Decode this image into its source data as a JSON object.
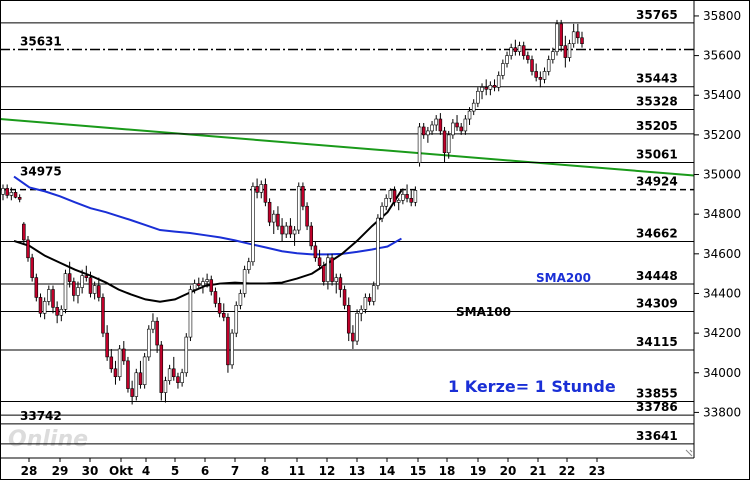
{
  "chart_data": {
    "type": "candlestick",
    "title": "",
    "xlabel": "",
    "ylabel": "",
    "ylim": [
      33570,
      35830
    ],
    "y_ticks": [
      33800,
      34000,
      34200,
      34400,
      34600,
      34800,
      35000,
      35200,
      35400,
      35600,
      35800
    ],
    "y_tick_labels": [
      "33800",
      "34000",
      "34200",
      "34400",
      "34600",
      "34800",
      "35000",
      "35200",
      "35400",
      "35600",
      "35800"
    ],
    "x_tick_labels": [
      "28",
      "29",
      "30",
      "Okt",
      "4",
      "5",
      "6",
      "7",
      "8",
      "11",
      "12",
      "13",
      "14",
      "15",
      "18",
      "19",
      "20",
      "21",
      "22",
      "23"
    ],
    "grid": "horizontal lines at key levels",
    "colors": {
      "up_candle": "#ffffff",
      "down_candle": "#c0002a",
      "sma100": "#000000",
      "sma200": "#1a2fd6",
      "trendline": "#1a9a1a",
      "level_line": "#000000"
    },
    "levels": [
      {
        "value": 35765,
        "label": "35765",
        "style": "solid",
        "label_side": "right"
      },
      {
        "value": 35631,
        "label": "35631",
        "style": "dashdot",
        "label_side": "left"
      },
      {
        "value": 35443,
        "label": "35443",
        "style": "solid",
        "label_side": "right"
      },
      {
        "value": 35328,
        "label": "35328",
        "style": "solid",
        "label_side": "right"
      },
      {
        "value": 35205,
        "label": "35205",
        "style": "solid",
        "label_side": "right"
      },
      {
        "value": 35061,
        "label": "35061",
        "style": "solid",
        "label_side": "right"
      },
      {
        "value": 34975,
        "label": "34975",
        "style": "none",
        "label_side": "left"
      },
      {
        "value": 34924,
        "label": "34924",
        "style": "dashed",
        "label_side": "right"
      },
      {
        "value": 34662,
        "label": "34662",
        "style": "solid",
        "label_side": "right"
      },
      {
        "value": 34448,
        "label": "34448",
        "style": "solid",
        "label_side": "right"
      },
      {
        "value": 34309,
        "label": "34309",
        "style": "solid",
        "label_side": "right"
      },
      {
        "value": 34115,
        "label": "34115",
        "style": "solid",
        "label_side": "right"
      },
      {
        "value": 33855,
        "label": "33855",
        "style": "solid",
        "label_side": "right"
      },
      {
        "value": 33786,
        "label": "33786",
        "style": "solid",
        "label_side": "right"
      },
      {
        "value": 33742,
        "label": "33742",
        "style": "solid",
        "label_side": "left"
      },
      {
        "value": 33641,
        "label": "33641",
        "style": "solid",
        "label_side": "right"
      }
    ],
    "trendline": {
      "start": 35280,
      "end": 34995
    },
    "sma200": {
      "name": "SMA200",
      "points": [
        [
          0,
          34990
        ],
        [
          0.5,
          34935
        ],
        [
          1,
          34915
        ],
        [
          1.5,
          34890
        ],
        [
          2,
          34860
        ],
        [
          2.5,
          34830
        ],
        [
          3,
          34810
        ],
        [
          3.5,
          34790
        ],
        [
          4,
          34770
        ],
        [
          4.5,
          34745
        ],
        [
          5,
          34720
        ],
        [
          5.5,
          34712
        ],
        [
          6,
          34705
        ],
        [
          6.5,
          34694
        ],
        [
          7,
          34683
        ],
        [
          7.5,
          34668
        ],
        [
          8,
          34650
        ],
        [
          8.5,
          34632
        ],
        [
          9,
          34613
        ],
        [
          9.5,
          34603
        ],
        [
          10,
          34597
        ],
        [
          10.5,
          34597
        ],
        [
          11,
          34600
        ],
        [
          11.5,
          34610
        ],
        [
          12,
          34622
        ],
        [
          12.5,
          34637
        ],
        [
          12.95,
          34677
        ]
      ]
    },
    "sma100": {
      "name": "SMA100",
      "points": [
        [
          0,
          34665
        ],
        [
          0.5,
          34640
        ],
        [
          1,
          34590
        ],
        [
          1.5,
          34555
        ],
        [
          2,
          34520
        ],
        [
          2.5,
          34490
        ],
        [
          3,
          34455
        ],
        [
          3.5,
          34420
        ],
        [
          4,
          34395
        ],
        [
          4.5,
          34370
        ],
        [
          5,
          34358
        ],
        [
          5.5,
          34370
        ],
        [
          6,
          34405
        ],
        [
          6.5,
          34438
        ],
        [
          7,
          34450
        ],
        [
          7.5,
          34455
        ],
        [
          8,
          34450
        ],
        [
          8.5,
          34450
        ],
        [
          9,
          34455
        ],
        [
          9.5,
          34475
        ],
        [
          10,
          34500
        ],
        [
          10.5,
          34550
        ],
        [
          11,
          34600
        ],
        [
          11.5,
          34665
        ],
        [
          12,
          34740
        ],
        [
          12.5,
          34810
        ],
        [
          12.95,
          34920
        ]
      ]
    },
    "candles": [
      [
        34900,
        34950,
        34870,
        34930
      ],
      [
        34930,
        34950,
        34880,
        34895
      ],
      [
        34895,
        34935,
        34870,
        34910
      ],
      [
        34910,
        34920,
        34880,
        34885
      ],
      [
        34885,
        34900,
        34860,
        34875
      ],
      [
        34750,
        34760,
        34650,
        34670
      ],
      [
        34670,
        34690,
        34560,
        34580
      ],
      [
        34580,
        34600,
        34460,
        34480
      ],
      [
        34480,
        34500,
        34360,
        34380
      ],
      [
        34380,
        34400,
        34280,
        34300
      ],
      [
        34300,
        34380,
        34270,
        34360
      ],
      [
        34360,
        34440,
        34340,
        34420
      ],
      [
        34420,
        34440,
        34300,
        34330
      ],
      [
        34330,
        34360,
        34250,
        34290
      ],
      [
        34290,
        34340,
        34260,
        34320
      ],
      [
        34320,
        34520,
        34300,
        34500
      ],
      [
        34500,
        34560,
        34430,
        34460
      ],
      [
        34460,
        34480,
        34360,
        34390
      ],
      [
        34390,
        34460,
        34350,
        34430
      ],
      [
        34430,
        34520,
        34400,
        34490
      ],
      [
        34490,
        34540,
        34460,
        34480
      ],
      [
        34480,
        34510,
        34380,
        34400
      ],
      [
        34400,
        34460,
        34370,
        34440
      ],
      [
        34440,
        34480,
        34360,
        34380
      ],
      [
        34380,
        34400,
        34180,
        34200
      ],
      [
        34200,
        34240,
        34060,
        34080
      ],
      [
        34080,
        34120,
        34000,
        34020
      ],
      [
        34020,
        34060,
        33940,
        33980
      ],
      [
        33980,
        34140,
        33960,
        34120
      ],
      [
        34120,
        34160,
        34040,
        34060
      ],
      [
        34060,
        34080,
        33900,
        33920
      ],
      [
        33920,
        33960,
        33840,
        33880
      ],
      [
        33880,
        34020,
        33860,
        34000
      ],
      [
        34000,
        34060,
        33920,
        33940
      ],
      [
        33940,
        34100,
        33920,
        34080
      ],
      [
        34080,
        34240,
        34060,
        34220
      ],
      [
        34220,
        34300,
        34200,
        34260
      ],
      [
        34260,
        34280,
        34100,
        34140
      ],
      [
        34140,
        34160,
        33860,
        33900
      ],
      [
        33900,
        33980,
        33850,
        33960
      ],
      [
        33960,
        34040,
        33940,
        34020
      ],
      [
        34020,
        34080,
        33960,
        33980
      ],
      [
        33980,
        34000,
        33920,
        33950
      ],
      [
        33950,
        34020,
        33930,
        34000
      ],
      [
        34000,
        34200,
        33980,
        34180
      ],
      [
        34180,
        34440,
        34160,
        34420
      ],
      [
        34420,
        34470,
        34400,
        34450
      ],
      [
        34450,
        34480,
        34420,
        34440
      ],
      [
        34440,
        34480,
        34400,
        34460
      ],
      [
        34460,
        34500,
        34430,
        34470
      ],
      [
        34470,
        34490,
        34390,
        34410
      ],
      [
        34410,
        34430,
        34330,
        34350
      ],
      [
        34350,
        34380,
        34280,
        34300
      ],
      [
        34300,
        34350,
        34260,
        34280
      ],
      [
        34280,
        34300,
        34000,
        34040
      ],
      [
        34040,
        34220,
        34020,
        34200
      ],
      [
        34200,
        34360,
        34180,
        34340
      ],
      [
        34340,
        34420,
        34320,
        34400
      ],
      [
        34400,
        34540,
        34380,
        34520
      ],
      [
        34520,
        34580,
        34500,
        34560
      ],
      [
        34560,
        34960,
        34540,
        34940
      ],
      [
        34940,
        34980,
        34880,
        34910
      ],
      [
        34910,
        34970,
        34880,
        34950
      ],
      [
        34950,
        34980,
        34840,
        34860
      ],
      [
        34860,
        34880,
        34740,
        34760
      ],
      [
        34760,
        34820,
        34700,
        34800
      ],
      [
        34800,
        34840,
        34720,
        34740
      ],
      [
        34740,
        34780,
        34660,
        34700
      ],
      [
        34700,
        34760,
        34680,
        34740
      ],
      [
        34740,
        34780,
        34680,
        34700
      ],
      [
        34700,
        34740,
        34640,
        34720
      ],
      [
        34720,
        34960,
        34700,
        34940
      ],
      [
        34940,
        34960,
        34820,
        34840
      ],
      [
        34840,
        34860,
        34720,
        34740
      ],
      [
        34740,
        34760,
        34620,
        34640
      ],
      [
        34640,
        34660,
        34560,
        34580
      ],
      [
        34580,
        34620,
        34520,
        34540
      ],
      [
        34540,
        34560,
        34440,
        34460
      ],
      [
        34460,
        34600,
        34420,
        34580
      ],
      [
        34580,
        34600,
        34440,
        34460
      ],
      [
        34460,
        34500,
        34400,
        34480
      ],
      [
        34480,
        34500,
        34380,
        34420
      ],
      [
        34420,
        34440,
        34320,
        34340
      ],
      [
        34340,
        34380,
        34160,
        34200
      ],
      [
        34200,
        34240,
        34120,
        34160
      ],
      [
        34160,
        34320,
        34140,
        34300
      ],
      [
        34300,
        34340,
        34260,
        34320
      ],
      [
        34320,
        34400,
        34300,
        34380
      ],
      [
        34380,
        34400,
        34340,
        34360
      ],
      [
        34360,
        34460,
        34340,
        34440
      ],
      [
        34440,
        34800,
        34420,
        34780
      ],
      [
        34780,
        34860,
        34760,
        34840
      ],
      [
        34840,
        34900,
        34820,
        34880
      ],
      [
        34880,
        34930,
        34860,
        34920
      ],
      [
        34920,
        34940,
        34840,
        34860
      ],
      [
        34860,
        34880,
        34820,
        34870
      ],
      [
        34870,
        34930,
        34850,
        34900
      ],
      [
        34900,
        34950,
        34860,
        34880
      ],
      [
        34880,
        34920,
        34840,
        34860
      ],
      [
        34860,
        34940,
        34840,
        34920
      ],
      [
        35060,
        35260,
        35040,
        35240
      ],
      [
        35240,
        35260,
        35180,
        35200
      ],
      [
        35200,
        35240,
        35160,
        35220
      ],
      [
        35220,
        35270,
        35200,
        35250
      ],
      [
        35250,
        35300,
        35220,
        35280
      ],
      [
        35280,
        35310,
        35200,
        35220
      ],
      [
        35220,
        35240,
        35060,
        35110
      ],
      [
        35110,
        35220,
        35080,
        35200
      ],
      [
        35200,
        35280,
        35180,
        35260
      ],
      [
        35260,
        35300,
        35220,
        35240
      ],
      [
        35240,
        35260,
        35200,
        35220
      ],
      [
        35220,
        35300,
        35200,
        35280
      ],
      [
        35280,
        35340,
        35250,
        35320
      ],
      [
        35320,
        35380,
        35300,
        35360
      ],
      [
        35360,
        35440,
        35340,
        35420
      ],
      [
        35420,
        35460,
        35380,
        35440
      ],
      [
        35440,
        35480,
        35400,
        35430
      ],
      [
        35430,
        35470,
        35400,
        35450
      ],
      [
        35450,
        35480,
        35420,
        35440
      ],
      [
        35440,
        35520,
        35420,
        35500
      ],
      [
        35500,
        35580,
        35480,
        35560
      ],
      [
        35560,
        35620,
        35540,
        35600
      ],
      [
        35600,
        35660,
        35580,
        35640
      ],
      [
        35640,
        35680,
        35600,
        35620
      ],
      [
        35620,
        35670,
        35600,
        35650
      ],
      [
        35650,
        35670,
        35580,
        35600
      ],
      [
        35600,
        35620,
        35560,
        35580
      ],
      [
        35580,
        35600,
        35500,
        35520
      ],
      [
        35520,
        35560,
        35470,
        35490
      ],
      [
        35490,
        35520,
        35440,
        35480
      ],
      [
        35480,
        35540,
        35460,
        35520
      ],
      [
        35520,
        35600,
        35500,
        35580
      ],
      [
        35580,
        35640,
        35560,
        35620
      ],
      [
        35620,
        35780,
        35600,
        35760
      ],
      [
        35760,
        35780,
        35620,
        35650
      ],
      [
        35650,
        35700,
        35540,
        35590
      ],
      [
        35590,
        35680,
        35570,
        35660
      ],
      [
        35660,
        35760,
        35640,
        35720
      ],
      [
        35720,
        35760,
        35660,
        35690
      ],
      [
        35690,
        35720,
        35640,
        35660
      ]
    ],
    "annotations": {
      "sma200_label": "SMA200",
      "sma100_label": "SMA100",
      "note": "1 Kerze= 1 Stunde"
    },
    "logo_text": "Online"
  }
}
